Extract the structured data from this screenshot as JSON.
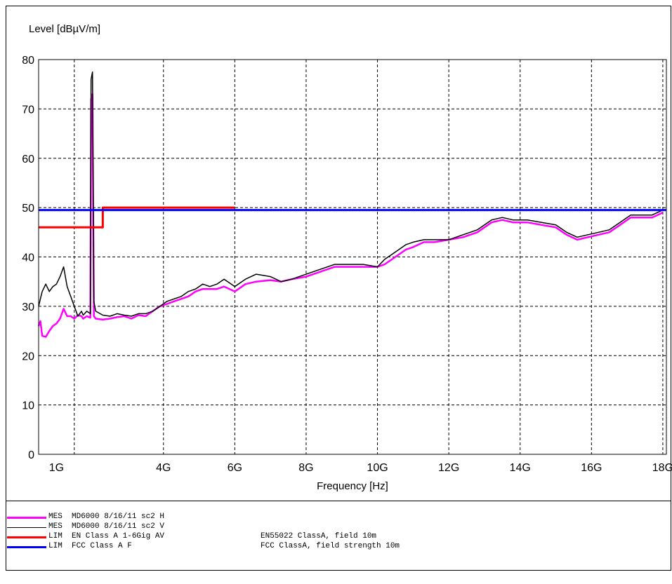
{
  "chart_data": {
    "type": "line",
    "ylabel": "Level [dBµV/m]",
    "xlabel": "Frequency [Hz]",
    "ylim": [
      0,
      80
    ],
    "xlim": [
      0.5,
      18.1
    ],
    "y_ticks": [
      0,
      10,
      20,
      30,
      40,
      50,
      60,
      70,
      80
    ],
    "x_ticks": [
      {
        "value": 1,
        "label": "1G"
      },
      {
        "value": 4,
        "label": "4G"
      },
      {
        "value": 6,
        "label": "6G"
      },
      {
        "value": 8,
        "label": "8G"
      },
      {
        "value": 10,
        "label": "10G"
      },
      {
        "value": 12,
        "label": "12G"
      },
      {
        "value": 14,
        "label": "14G"
      },
      {
        "value": 16,
        "label": "16G"
      },
      {
        "value": 18,
        "label": "18G"
      }
    ],
    "x_gridlines": [
      1.5,
      4,
      6,
      8,
      10,
      12,
      14,
      16,
      18
    ],
    "grid": true,
    "series": [
      {
        "name": "MES MD6000 8/16/11 sc2 H",
        "color": "#ff00ff",
        "points": [
          [
            0.5,
            26
          ],
          [
            0.55,
            27
          ],
          [
            0.6,
            24
          ],
          [
            0.7,
            23.8
          ],
          [
            0.8,
            25
          ],
          [
            0.9,
            26
          ],
          [
            1,
            26.5
          ],
          [
            1.1,
            27.5
          ],
          [
            1.2,
            29.5
          ],
          [
            1.3,
            28
          ],
          [
            1.4,
            28
          ],
          [
            1.5,
            27.5
          ],
          [
            1.6,
            28.2
          ],
          [
            1.7,
            28
          ],
          [
            1.75,
            27.5
          ],
          [
            1.85,
            28
          ],
          [
            1.95,
            27.7
          ],
          [
            1.97,
            72
          ],
          [
            2.01,
            73
          ],
          [
            2.05,
            28
          ],
          [
            2.1,
            27.5
          ],
          [
            2.3,
            27.3
          ],
          [
            2.5,
            27.5
          ],
          [
            2.7,
            27.8
          ],
          [
            2.9,
            28
          ],
          [
            3.1,
            27.5
          ],
          [
            3.3,
            28.2
          ],
          [
            3.5,
            28
          ],
          [
            3.7,
            29
          ],
          [
            3.9,
            30
          ],
          [
            4.1,
            30.5
          ],
          [
            4.3,
            31
          ],
          [
            4.5,
            31.5
          ],
          [
            4.7,
            32
          ],
          [
            4.9,
            33
          ],
          [
            5.1,
            33.5
          ],
          [
            5.3,
            33.5
          ],
          [
            5.5,
            33.5
          ],
          [
            5.7,
            34
          ],
          [
            6,
            33
          ],
          [
            6.3,
            34.5
          ],
          [
            6.6,
            35
          ],
          [
            7,
            35.3
          ],
          [
            7.3,
            35
          ],
          [
            7.6,
            35.5
          ],
          [
            8,
            36
          ],
          [
            8.4,
            37
          ],
          [
            8.8,
            38
          ],
          [
            9.2,
            38
          ],
          [
            9.6,
            38
          ],
          [
            10,
            38
          ],
          [
            10.2,
            38.5
          ],
          [
            10.5,
            40
          ],
          [
            10.8,
            41.5
          ],
          [
            11,
            42
          ],
          [
            11.3,
            43
          ],
          [
            11.6,
            43
          ],
          [
            12,
            43.5
          ],
          [
            12.4,
            44
          ],
          [
            12.8,
            45
          ],
          [
            13.2,
            47
          ],
          [
            13.5,
            47.5
          ],
          [
            13.8,
            47
          ],
          [
            14.2,
            47
          ],
          [
            14.6,
            46.5
          ],
          [
            15,
            46
          ],
          [
            15.3,
            44.5
          ],
          [
            15.6,
            43.5
          ],
          [
            15.9,
            44
          ],
          [
            16.2,
            44.5
          ],
          [
            16.5,
            45
          ],
          [
            16.8,
            46.5
          ],
          [
            17.1,
            48
          ],
          [
            17.4,
            48
          ],
          [
            17.7,
            48
          ],
          [
            18,
            49
          ]
        ]
      },
      {
        "name": "MES MD6000 8/16/11 sc2 V",
        "color": "#000000",
        "points": [
          [
            0.5,
            30
          ],
          [
            0.55,
            31.5
          ],
          [
            0.6,
            33
          ],
          [
            0.7,
            34.5
          ],
          [
            0.8,
            33
          ],
          [
            0.9,
            34
          ],
          [
            1,
            34.5
          ],
          [
            1.1,
            36
          ],
          [
            1.2,
            38
          ],
          [
            1.3,
            34
          ],
          [
            1.4,
            32
          ],
          [
            1.5,
            30
          ],
          [
            1.6,
            28
          ],
          [
            1.7,
            29
          ],
          [
            1.75,
            28.2
          ],
          [
            1.85,
            29
          ],
          [
            1.95,
            28.5
          ],
          [
            1.97,
            76
          ],
          [
            2.01,
            77.5
          ],
          [
            2.05,
            31
          ],
          [
            2.1,
            29
          ],
          [
            2.3,
            28.2
          ],
          [
            2.5,
            28
          ],
          [
            2.7,
            28.5
          ],
          [
            2.9,
            28.2
          ],
          [
            3.1,
            28
          ],
          [
            3.3,
            28.5
          ],
          [
            3.5,
            28.5
          ],
          [
            3.7,
            29
          ],
          [
            3.9,
            30
          ],
          [
            4.1,
            31
          ],
          [
            4.3,
            31.5
          ],
          [
            4.5,
            32
          ],
          [
            4.7,
            33
          ],
          [
            4.9,
            33.5
          ],
          [
            5.1,
            34.5
          ],
          [
            5.3,
            34
          ],
          [
            5.5,
            34.5
          ],
          [
            5.7,
            35.5
          ],
          [
            6,
            34
          ],
          [
            6.3,
            35.5
          ],
          [
            6.6,
            36.5
          ],
          [
            7,
            36
          ],
          [
            7.3,
            35
          ],
          [
            7.6,
            35.5
          ],
          [
            8,
            36.5
          ],
          [
            8.4,
            37.5
          ],
          [
            8.8,
            38.5
          ],
          [
            9.2,
            38.5
          ],
          [
            9.6,
            38.5
          ],
          [
            10,
            38
          ],
          [
            10.2,
            39.5
          ],
          [
            10.5,
            41
          ],
          [
            10.8,
            42.5
          ],
          [
            11,
            43
          ],
          [
            11.3,
            43.5
          ],
          [
            11.6,
            43.5
          ],
          [
            12,
            43.5
          ],
          [
            12.4,
            44.5
          ],
          [
            12.8,
            45.5
          ],
          [
            13.2,
            47.5
          ],
          [
            13.5,
            48
          ],
          [
            13.8,
            47.5
          ],
          [
            14.2,
            47.5
          ],
          [
            14.6,
            47
          ],
          [
            15,
            46.5
          ],
          [
            15.3,
            45
          ],
          [
            15.6,
            44
          ],
          [
            15.9,
            44.5
          ],
          [
            16.2,
            45
          ],
          [
            16.5,
            45.5
          ],
          [
            16.8,
            47
          ],
          [
            17.1,
            48.5
          ],
          [
            17.4,
            48.5
          ],
          [
            17.7,
            48.5
          ],
          [
            18,
            49.5
          ]
        ]
      },
      {
        "name": "LIM EN Class A 1-6Gig AV",
        "color": "#ff0000",
        "points": [
          [
            0.5,
            46
          ],
          [
            2.3,
            46
          ],
          [
            2.3,
            50
          ],
          [
            6,
            50
          ]
        ]
      },
      {
        "name": "LIM FCC Class A F",
        "color": "#0000ff",
        "points": [
          [
            0.5,
            49.5
          ],
          [
            18.1,
            49.5
          ]
        ]
      }
    ]
  },
  "legend": [
    {
      "line_color": "#ff00ff",
      "text": "MES  MD6000 8/16/11 sc2 H",
      "desc": ""
    },
    {
      "line_color": "#000000",
      "text": "MES  MD6000 8/16/11 sc2 V",
      "desc": ""
    },
    {
      "line_color": "#ff0000",
      "text": "LIM  EN Class A 1-6Gig AV",
      "desc": "EN55022 ClassA, field 10m"
    },
    {
      "line_color": "#0000ff",
      "text": "LIM  FCC Class A F",
      "desc": "FCC ClassA, field strength 10m"
    }
  ]
}
